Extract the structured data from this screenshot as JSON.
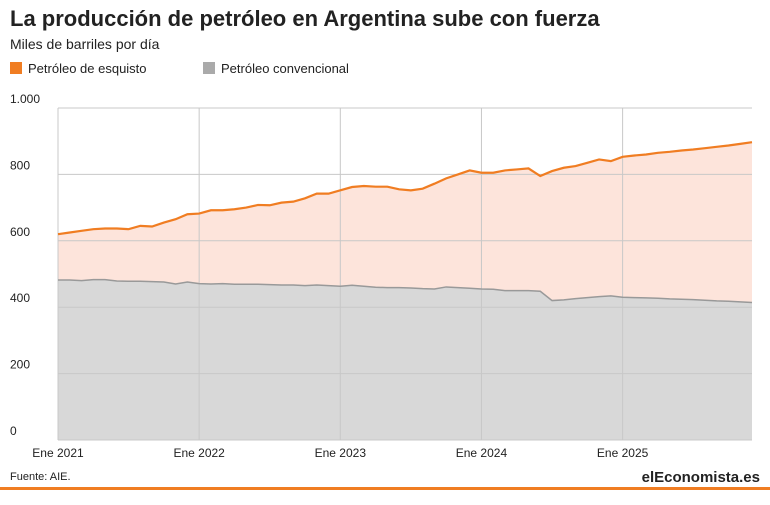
{
  "chart_data": {
    "type": "stacked_area",
    "title": "La producción de petróleo en Argentina sube con fuerza",
    "subtitle": "Miles de barriles por día",
    "source": "Fuente: AIE.",
    "logo": "elEconomista.es",
    "grid": true,
    "categories": [
      "Ene 2021",
      null,
      null,
      null,
      null,
      null,
      null,
      null,
      null,
      null,
      null,
      null,
      "Ene 2022",
      null,
      null,
      null,
      null,
      null,
      null,
      null,
      null,
      null,
      null,
      null,
      "Ene 2023",
      null,
      null,
      null,
      null,
      null,
      null,
      null,
      null,
      null,
      null,
      null,
      "Ene 2024",
      null,
      null,
      null,
      null,
      null,
      null,
      null,
      null,
      null,
      null,
      null,
      "Ene 2025",
      null,
      null,
      null,
      null,
      null,
      null,
      null,
      null,
      null,
      null,
      null
    ],
    "ylim": [
      0,
      1000
    ],
    "yticks": [
      0,
      200,
      400,
      600,
      {
        "value": 1000,
        "label": "1.000"
      },
      800
    ],
    "series": [
      {
        "name": "Petróleo convencional",
        "color": "#aaaaaa",
        "values": [
          482,
          482,
          480,
          483,
          483,
          479,
          478,
          478,
          477,
          476,
          470,
          476,
          471,
          470,
          471,
          469,
          469,
          469,
          468,
          467,
          467,
          465,
          467,
          465,
          463,
          466,
          463,
          460,
          459,
          459,
          458,
          456,
          455,
          461,
          459,
          457,
          455,
          454,
          450,
          450,
          450,
          448,
          420,
          422,
          426,
          429,
          432,
          434,
          430,
          429,
          428,
          427,
          425,
          424,
          423,
          421,
          419,
          418,
          416,
          414
        ]
      },
      {
        "name": "Petróleo de esquisto",
        "color": "#f07d22",
        "values": [
          138,
          143,
          150,
          152,
          154,
          158,
          157,
          167,
          166,
          179,
          195,
          204,
          211,
          222,
          221,
          226,
          231,
          239,
          239,
          248,
          251,
          263,
          275,
          277,
          289,
          296,
          302,
          303,
          304,
          296,
          294,
          301,
          317,
          327,
          341,
          355,
          350,
          351,
          362,
          365,
          368,
          347,
          390,
          398,
          399,
          406,
          413,
          406,
          423,
          428,
          432,
          438,
          443,
          448,
          452,
          458,
          464,
          469,
          476,
          483
        ]
      }
    ]
  }
}
